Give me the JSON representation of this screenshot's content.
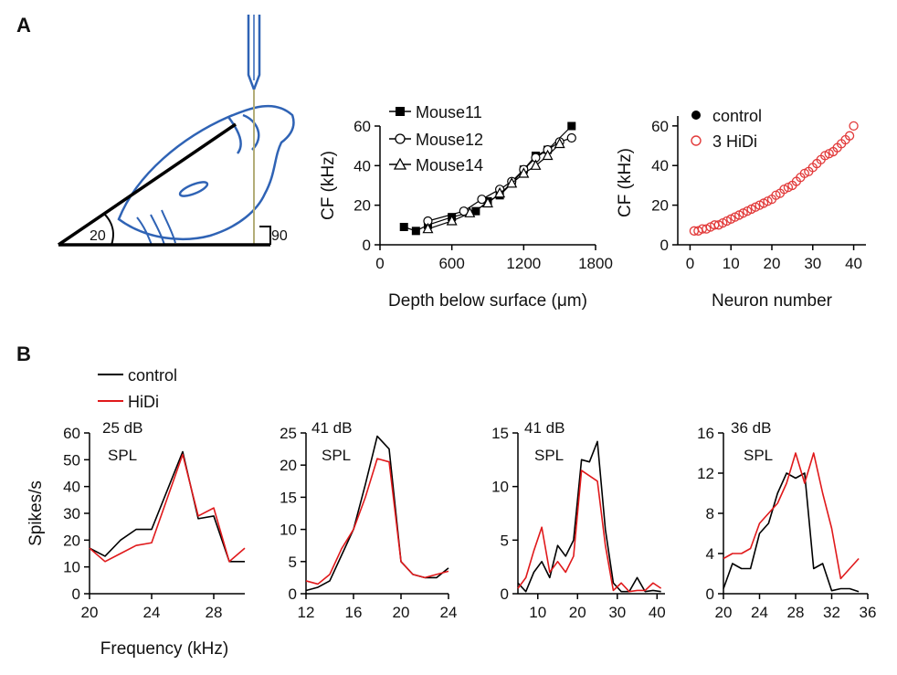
{
  "panel_labels": {
    "a": "A",
    "b": "B"
  },
  "schematic": {
    "angle_left": "20",
    "angle_right": "90"
  },
  "colors": {
    "control": "#000000",
    "hidi": "#e0191b",
    "hidi_markers": "#e23a3a",
    "anatomy": "#2f63b5"
  },
  "legend_b": {
    "control": "control",
    "hidi": "HiDi"
  },
  "chart_data": [
    {
      "id": "depth",
      "type": "scatter",
      "title": "",
      "xlabel": "Depth below surface (μm)",
      "ylabel": "CF (kHz)",
      "xlim": [
        0,
        1800
      ],
      "ylim": [
        0,
        60
      ],
      "xticks": [
        "0",
        "600",
        "1200",
        "1800"
      ],
      "yticks": [
        "0",
        "20",
        "40",
        "60"
      ],
      "legend": [
        "Mouse11",
        "Mouse12",
        "Mouse14"
      ],
      "series": [
        {
          "name": "Mouse11",
          "marker": "square-filled",
          "x": [
            200,
            300,
            400,
            600,
            800,
            900,
            1000,
            1100,
            1200,
            1300,
            1400,
            1600
          ],
          "y": [
            9,
            7,
            10,
            14,
            17,
            22,
            25,
            31,
            38,
            45,
            48,
            60
          ]
        },
        {
          "name": "Mouse12",
          "marker": "circle-open",
          "x": [
            400,
            700,
            850,
            1000,
            1100,
            1200,
            1300,
            1400,
            1500,
            1600
          ],
          "y": [
            12,
            17,
            23,
            28,
            32,
            38,
            44,
            48,
            52,
            54
          ]
        },
        {
          "name": "Mouse14",
          "marker": "triangle-open",
          "x": [
            400,
            600,
            750,
            900,
            1000,
            1100,
            1200,
            1300,
            1400,
            1500
          ],
          "y": [
            8,
            12,
            16,
            21,
            26,
            31,
            36,
            40,
            45,
            51
          ]
        }
      ]
    },
    {
      "id": "neurons",
      "type": "scatter",
      "title": "",
      "xlabel": "Neuron number",
      "ylabel": "CF (kHz)",
      "xlim": [
        -3,
        43
      ],
      "ylim": [
        0,
        65
      ],
      "xticks": [
        "0",
        "10",
        "20",
        "30",
        "40"
      ],
      "yticks": [
        "0",
        "20",
        "40",
        "60"
      ],
      "legend": [
        "control",
        "3 HiDi"
      ],
      "series": [
        {
          "name": "3 HiDi",
          "marker": "circle-open-red",
          "x": [
            1,
            2,
            3,
            4,
            5,
            6,
            7,
            8,
            9,
            10,
            11,
            12,
            13,
            14,
            15,
            16,
            17,
            18,
            19,
            20,
            21,
            22,
            23,
            24,
            25,
            26,
            27,
            28,
            29,
            30,
            31,
            32,
            33,
            34,
            35,
            36,
            37,
            38,
            39,
            40
          ],
          "y": [
            7,
            7,
            8,
            8,
            9,
            10,
            10,
            11,
            12,
            13,
            14,
            15,
            16,
            17,
            18,
            19,
            20,
            21,
            22,
            23,
            25,
            26,
            28,
            29,
            30,
            32,
            34,
            36,
            37,
            39,
            41,
            43,
            45,
            46,
            47,
            49,
            51,
            53,
            55,
            60
          ]
        }
      ]
    },
    {
      "id": "tuning1",
      "type": "line",
      "annotation": [
        "25 dB",
        "SPL"
      ],
      "xlabel": "Frequency (kHz)",
      "ylabel": "Spikes/s",
      "xlim": [
        20,
        30
      ],
      "ylim": [
        0,
        60
      ],
      "xticks": [
        "20",
        "24",
        "28"
      ],
      "yticks": [
        "0",
        "10",
        "20",
        "30",
        "40",
        "50",
        "60"
      ],
      "series": [
        {
          "name": "control",
          "x": [
            20,
            21,
            22,
            23,
            24,
            26,
            27,
            28,
            29,
            30
          ],
          "y": [
            17,
            14,
            20,
            24,
            24,
            53,
            28,
            29,
            12,
            12
          ]
        },
        {
          "name": "HiDi",
          "x": [
            20,
            21,
            22,
            23,
            24,
            26,
            27,
            28,
            29,
            30
          ],
          "y": [
            17,
            12,
            15,
            18,
            19,
            52,
            29,
            32,
            12,
            17
          ]
        }
      ]
    },
    {
      "id": "tuning2",
      "type": "line",
      "annotation": [
        "41 dB",
        "SPL"
      ],
      "xlabel": "",
      "ylabel": "",
      "xlim": [
        12,
        24
      ],
      "ylim": [
        0,
        25
      ],
      "xticks": [
        "12",
        "16",
        "20",
        "24"
      ],
      "yticks": [
        "0",
        "5",
        "10",
        "15",
        "20",
        "25"
      ],
      "series": [
        {
          "name": "control",
          "x": [
            12,
            13,
            14,
            15,
            16,
            17,
            18,
            19,
            20,
            21,
            22,
            23,
            24
          ],
          "y": [
            0.5,
            1,
            2,
            6,
            10,
            17,
            24.5,
            22.5,
            5,
            3,
            2.5,
            2.5,
            4
          ]
        },
        {
          "name": "HiDi",
          "x": [
            12,
            13,
            14,
            15,
            16,
            17,
            18,
            19,
            20,
            21,
            22,
            23,
            24
          ],
          "y": [
            2,
            1.5,
            3,
            7,
            10,
            15,
            21,
            20.5,
            5,
            3,
            2.5,
            3,
            3.5
          ]
        }
      ]
    },
    {
      "id": "tuning3",
      "type": "line",
      "annotation": [
        "41 dB",
        "SPL"
      ],
      "xlabel": "",
      "ylabel": "",
      "xlim": [
        5,
        42
      ],
      "ylim": [
        0,
        15
      ],
      "xticks": [
        "10",
        "20",
        "30",
        "40"
      ],
      "yticks": [
        "0",
        "5",
        "10",
        "15"
      ],
      "series": [
        {
          "name": "control",
          "x": [
            5,
            7,
            9,
            11,
            13,
            15,
            17,
            19,
            21,
            23,
            25,
            27,
            29,
            31,
            33,
            35,
            37,
            39,
            41
          ],
          "y": [
            1,
            0.2,
            2,
            3,
            1.5,
            4.5,
            3.5,
            5,
            12.5,
            12.3,
            14.2,
            6,
            1,
            0.2,
            0.2,
            1.5,
            0.2,
            0.3,
            0.2
          ]
        },
        {
          "name": "HiDi",
          "x": [
            5,
            7,
            9,
            11,
            13,
            15,
            17,
            19,
            21,
            23,
            25,
            27,
            29,
            31,
            33,
            35,
            37,
            39,
            41
          ],
          "y": [
            0.5,
            1.5,
            4,
            6.2,
            2,
            3,
            2,
            3.5,
            11.5,
            11,
            10.5,
            4.5,
            0.3,
            1,
            0.2,
            0.3,
            0.3,
            1,
            0.5
          ]
        }
      ]
    },
    {
      "id": "tuning4",
      "type": "line",
      "annotation": [
        "36 dB",
        "SPL"
      ],
      "xlabel": "",
      "ylabel": "",
      "xlim": [
        20,
        36
      ],
      "ylim": [
        0,
        16
      ],
      "xticks": [
        "20",
        "24",
        "28",
        "32",
        "36"
      ],
      "yticks": [
        "0",
        "4",
        "8",
        "12",
        "16"
      ],
      "series": [
        {
          "name": "control",
          "x": [
            20,
            21,
            22,
            23,
            24,
            25,
            26,
            27,
            28,
            29,
            30,
            31,
            32,
            33,
            34,
            35
          ],
          "y": [
            0.5,
            3,
            2.5,
            2.5,
            6,
            7,
            10,
            12,
            11.5,
            12,
            2.5,
            3,
            0.3,
            0.5,
            0.5,
            0.2
          ]
        },
        {
          "name": "HiDi",
          "x": [
            20,
            21,
            22,
            23,
            24,
            25,
            26,
            27,
            28,
            29,
            30,
            31,
            32,
            33,
            34,
            35
          ],
          "y": [
            3.5,
            4,
            4,
            4.5,
            7,
            8,
            9,
            11,
            14,
            11,
            14,
            10,
            6.5,
            1.5,
            2.5,
            3.5
          ]
        }
      ]
    }
  ]
}
